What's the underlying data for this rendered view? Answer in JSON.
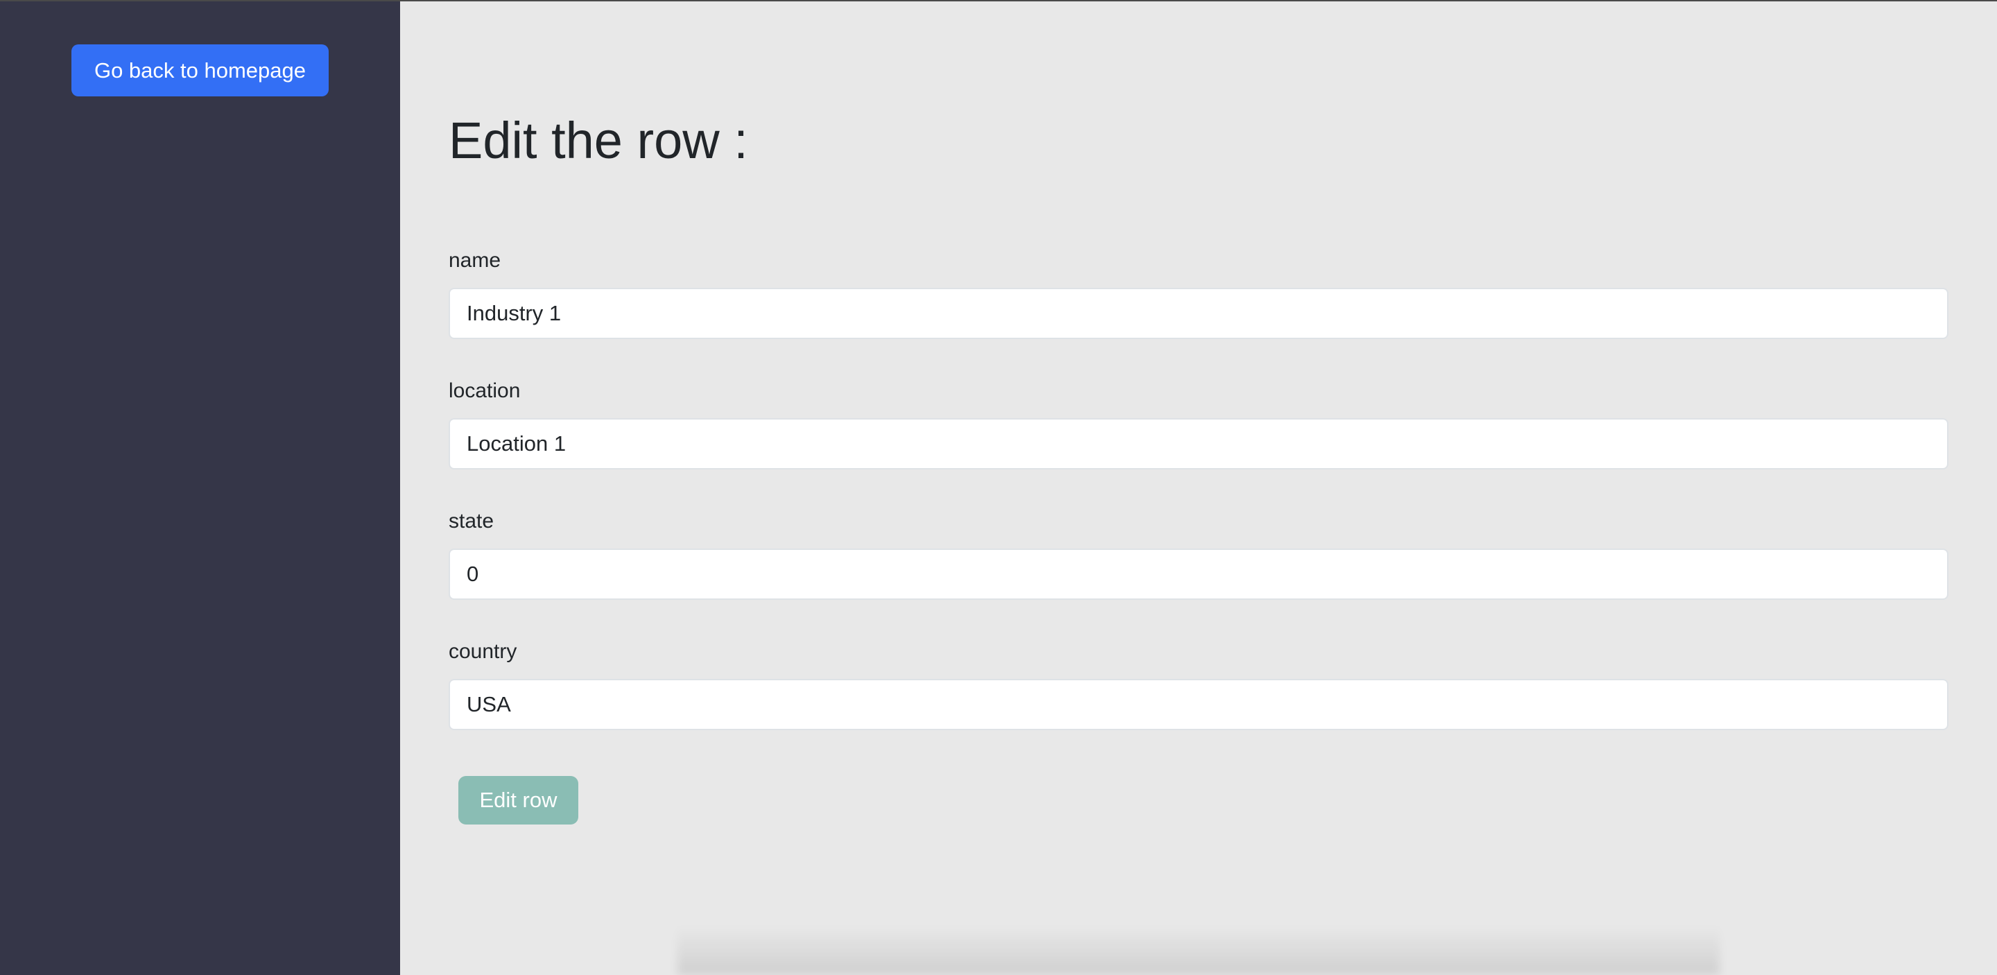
{
  "sidebar": {
    "back_button": "Go back to homepage"
  },
  "main": {
    "title": "Edit the row :",
    "fields": [
      {
        "label": "name",
        "value": "Industry 1"
      },
      {
        "label": "location",
        "value": "Location 1"
      },
      {
        "label": "state",
        "value": "0"
      },
      {
        "label": "country",
        "value": "USA"
      }
    ],
    "submit_label": "Edit row"
  },
  "colors": {
    "sidebar": "#353648",
    "primary": "#336ff5",
    "submit": "#8abdb4",
    "background": "#e8e8e8"
  }
}
